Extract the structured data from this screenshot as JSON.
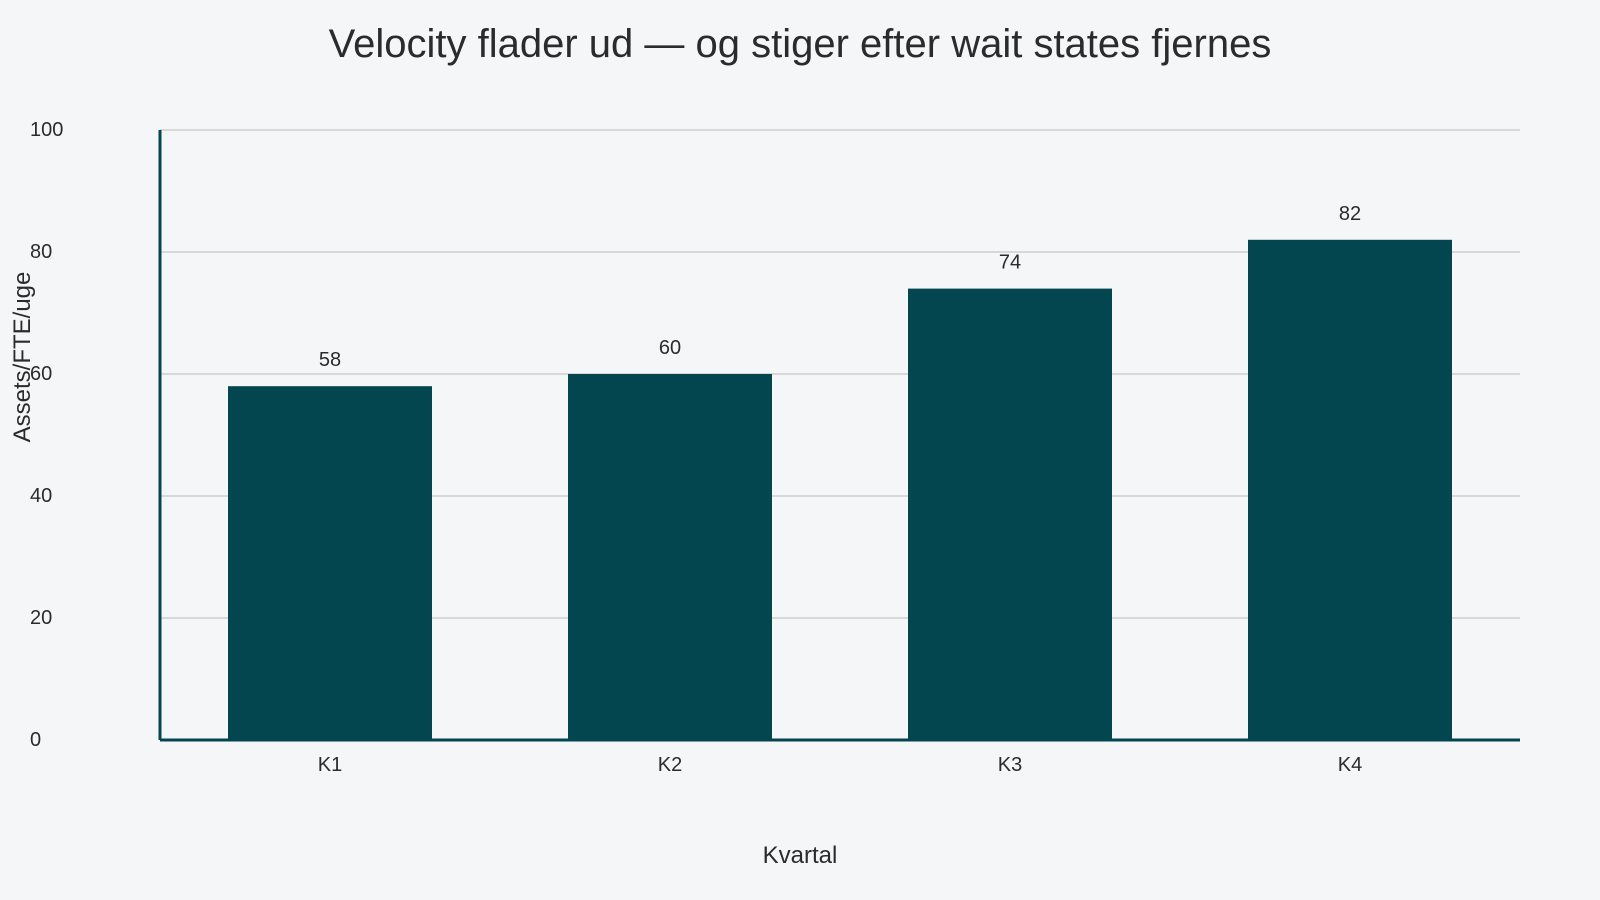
{
  "colors": {
    "background": "#f5f6f8",
    "bar": "#034650",
    "axis": "#034650",
    "grid": "#b9b9b9",
    "text": "#2b2b2b"
  },
  "chart_data": {
    "type": "bar",
    "title": "Velocity flader ud — og stiger efter wait states fjernes",
    "xlabel": "Kvartal",
    "ylabel": "Assets/FTE/uge",
    "categories": [
      "K1",
      "K2",
      "K3",
      "K4"
    ],
    "values": [
      58,
      60,
      74,
      82
    ],
    "data_labels": [
      "58",
      "60",
      "74",
      "82"
    ],
    "ylim": [
      0,
      100
    ],
    "yticks": [
      0,
      20,
      40,
      60,
      80,
      100
    ],
    "ytick_labels": [
      "0",
      "20",
      "40",
      "60",
      "80",
      "100"
    ],
    "grid": true,
    "legend": false
  }
}
